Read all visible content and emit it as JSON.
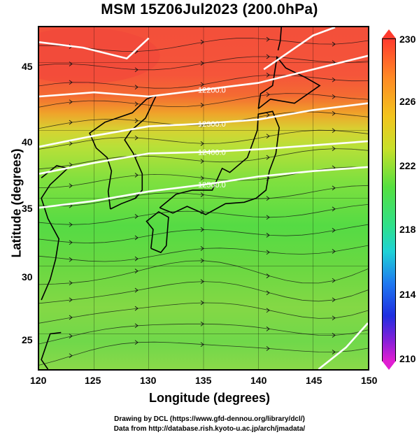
{
  "title": "MSM 15Z06Jul2023 (200.0hPa)",
  "x_axis": {
    "label": "Longitude (degrees)",
    "ticks": [
      "120",
      "125",
      "130",
      "135",
      "140",
      "145",
      "150"
    ]
  },
  "y_axis": {
    "label": "Latitude  (degrees)",
    "ticks": [
      "45",
      "40",
      "35",
      "30",
      "25"
    ]
  },
  "colorbar": {
    "ticks": [
      "230",
      "226",
      "222",
      "218",
      "214",
      "210"
    ],
    "colors": [
      "#ff3b2e",
      "#f2c41e",
      "#55e040",
      "#1ed2d6",
      "#1f2ee0",
      "#e01fd2"
    ]
  },
  "contour_labels": [
    "12200.0",
    "12300.0",
    "12400.0",
    "12500.0"
  ],
  "footer": {
    "line1": "Drawing by DCL (https://www.gfd-dennou.org/library/dcl/)",
    "line2": "Data from http://database.rish.kyoto-u.ac.jp/arch/jmadata/"
  },
  "chart_data": {
    "type": "heatmap",
    "title": "MSM 15Z06Jul2023 (200.0hPa)",
    "xlabel": "Longitude (degrees)",
    "ylabel": "Latitude  (degrees)",
    "xlim": [
      120,
      150
    ],
    "ylim": [
      22.4,
      47.6
    ],
    "color_range": [
      210,
      230
    ],
    "contours": [
      {
        "value": 12200.0,
        "path": [
          [
            120,
            42.5
          ],
          [
            125,
            42.8
          ],
          [
            130,
            42.5
          ],
          [
            135,
            43.0
          ],
          [
            140,
            43.5
          ],
          [
            145,
            44.5
          ],
          [
            150,
            45.5
          ]
        ]
      },
      {
        "value": 12300.0,
        "path": [
          [
            120,
            38.8
          ],
          [
            125,
            39.6
          ],
          [
            130,
            40.3
          ],
          [
            135,
            40.5
          ],
          [
            140,
            40.8
          ],
          [
            145,
            41.5
          ],
          [
            150,
            42.0
          ]
        ]
      },
      {
        "value": 12400.0,
        "path": [
          [
            120,
            36.8
          ],
          [
            125,
            37.6
          ],
          [
            130,
            38.3
          ],
          [
            135,
            38.4
          ],
          [
            140,
            38.6
          ],
          [
            145,
            38.9
          ],
          [
            150,
            39.2
          ]
        ]
      },
      {
        "value": 12500.0,
        "path": [
          [
            120,
            34.3
          ],
          [
            125,
            34.8
          ],
          [
            130,
            35.5
          ],
          [
            135,
            36.0
          ],
          [
            140,
            36.6
          ],
          [
            145,
            37.0
          ],
          [
            150,
            37.3
          ]
        ]
      }
    ]
  }
}
